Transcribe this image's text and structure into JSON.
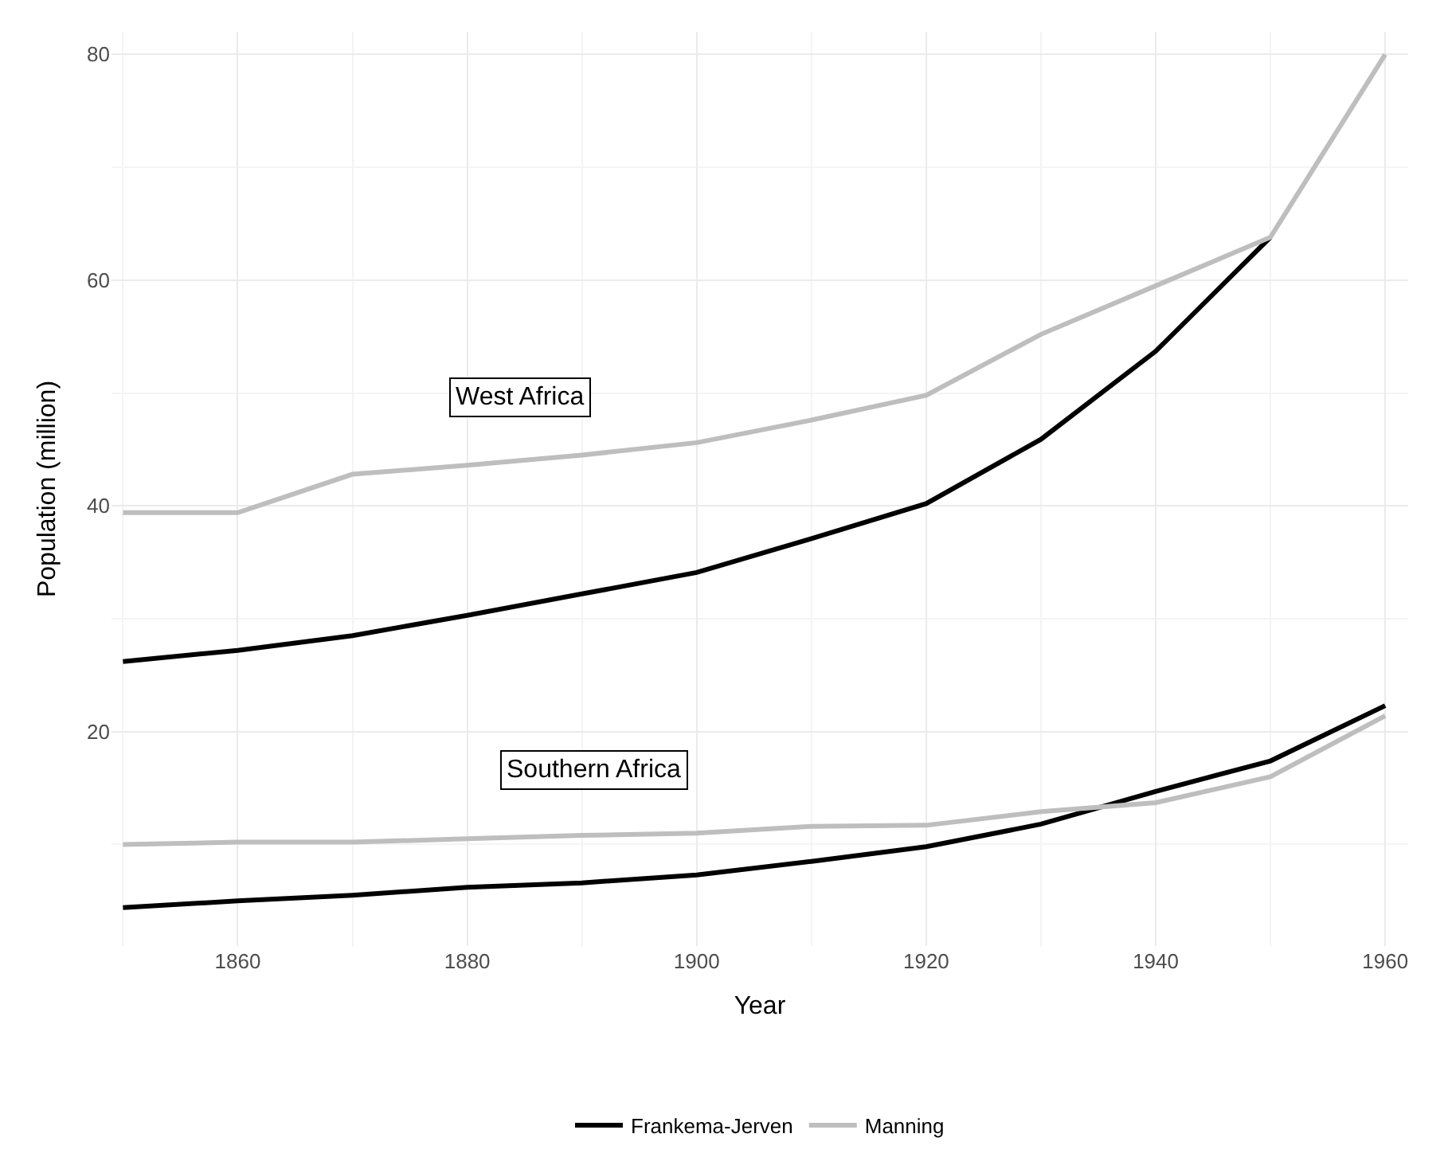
{
  "chart_data": {
    "type": "line",
    "xlabel": "Year",
    "ylabel": "Population (million)",
    "x": [
      1850,
      1860,
      1870,
      1880,
      1890,
      1900,
      1910,
      1920,
      1930,
      1940,
      1950,
      1960
    ],
    "series": [
      {
        "name": "Frankema-Jerven",
        "color": "#000000",
        "values": [
          26.2,
          27.2,
          28.5,
          30.3,
          32.2,
          34.1,
          37.1,
          40.2,
          45.9,
          53.7,
          63.8,
          null
        ]
      },
      {
        "name": "Manning",
        "color": "#bebebe",
        "values": [
          39.4,
          39.4,
          42.8,
          43.6,
          44.5,
          45.6,
          47.6,
          49.8,
          55.2,
          59.5,
          63.8,
          80
        ]
      },
      {
        "color": "#000000",
        "values": [
          4.4,
          5.0,
          5.5,
          6.2,
          6.6,
          7.3,
          8.5,
          9.8,
          11.8,
          14.7,
          17.4,
          22.3
        ]
      },
      {
        "color": "#bebebe",
        "values": [
          10.0,
          10.2,
          10.2,
          10.5,
          10.8,
          11.0,
          11.6,
          11.7,
          12.9,
          13.7,
          16.0,
          21.4
        ]
      }
    ],
    "annotations": [
      "West Africa",
      "Southern Africa"
    ],
    "xlim": [
      1849,
      1962
    ],
    "xticks": [
      1860,
      1880,
      1900,
      1920,
      1940,
      1960
    ],
    "ylim": [
      1,
      82
    ],
    "yticks": [
      20,
      40,
      60,
      80
    ],
    "grid": true,
    "legend": "bottom",
    "line_style": "solid",
    "marker": "none"
  }
}
